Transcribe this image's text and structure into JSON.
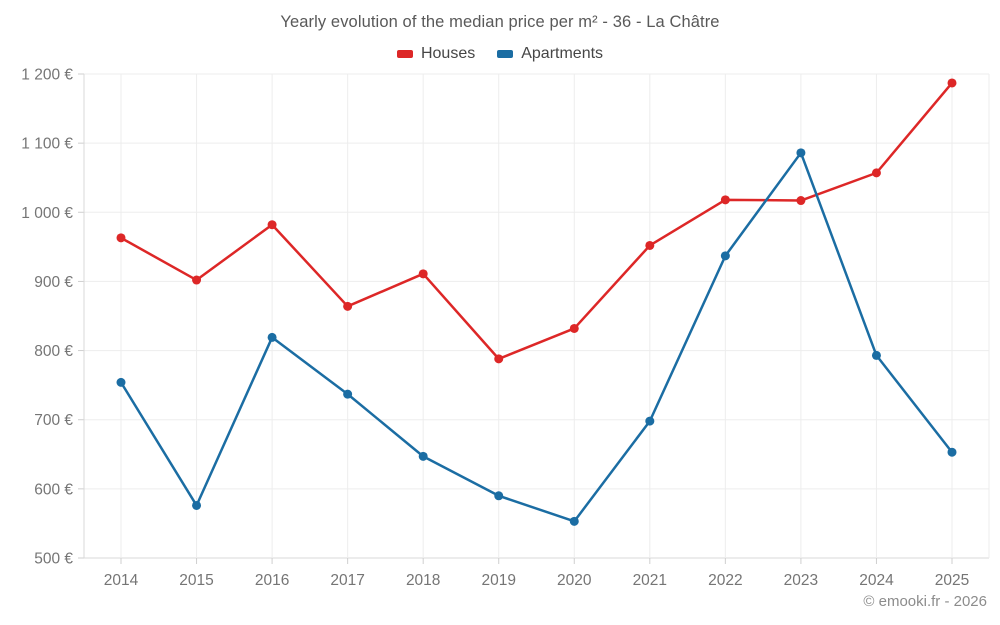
{
  "title": "Yearly evolution of the median price per m² - 36 - La Châtre",
  "footer": "© emooki.fr - 2026",
  "chart_data": {
    "type": "line",
    "title": "Yearly evolution of the median price per m² - 36 - La Châtre",
    "categories": [
      "2014",
      "2015",
      "2016",
      "2017",
      "2018",
      "2019",
      "2020",
      "2021",
      "2022",
      "2023",
      "2024",
      "2025"
    ],
    "series": [
      {
        "name": "Houses",
        "color": "#dd2727",
        "values": [
          963,
          902,
          982,
          864,
          911,
          788,
          832,
          952,
          1018,
          1017,
          1057,
          1187
        ]
      },
      {
        "name": "Apartments",
        "color": "#1b6da3",
        "values": [
          754,
          576,
          819,
          737,
          647,
          590,
          553,
          698,
          937,
          1086,
          793,
          653
        ]
      }
    ],
    "xlabel": "",
    "ylabel": "",
    "ylim": [
      500,
      1200
    ],
    "y_tick_step": 100,
    "y_tick_labels": [
      "500 €",
      "600 €",
      "700 €",
      "800 €",
      "900 €",
      "1 000 €",
      "1 100 €",
      "1 200 €"
    ],
    "grid": true,
    "legend_position": "top",
    "colors": {
      "grid_line": "#ededed",
      "axis_line": "#d9d9d9",
      "tick_mark": "#cfcfcf",
      "tick_label": "#757575"
    }
  }
}
